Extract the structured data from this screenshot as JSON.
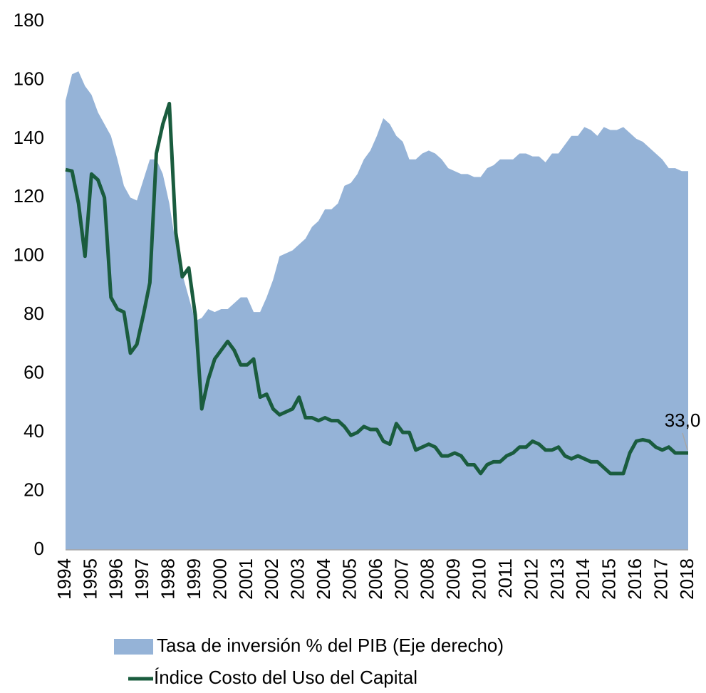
{
  "chart_data": {
    "type": "line",
    "categories": [
      "1994",
      null,
      null,
      null,
      "1995",
      null,
      null,
      null,
      "1996",
      null,
      null,
      null,
      "1997",
      null,
      null,
      null,
      "1998",
      null,
      null,
      null,
      "1999",
      null,
      null,
      null,
      "2000",
      null,
      null,
      null,
      "2001",
      null,
      null,
      null,
      "2002",
      null,
      null,
      null,
      "2003",
      null,
      null,
      null,
      "2004",
      null,
      null,
      null,
      "2005",
      null,
      null,
      null,
      "2006",
      null,
      null,
      null,
      "2007",
      null,
      null,
      null,
      "2008",
      null,
      null,
      null,
      "2009",
      null,
      null,
      null,
      "2010",
      null,
      null,
      null,
      "2011",
      null,
      null,
      null,
      "2012",
      null,
      null,
      null,
      "2013",
      null,
      null,
      null,
      "2014",
      null,
      null,
      null,
      "2015",
      null,
      null,
      null,
      "2016",
      null,
      null,
      null,
      "2017",
      null,
      null,
      null,
      "2018"
    ],
    "series": [
      {
        "name": "Tasa de inversión % del PIB (Eje derecho)",
        "type": "area",
        "color": "#95b3d7",
        "values": [
          153,
          162,
          163,
          158,
          155,
          149,
          145,
          141,
          133,
          124,
          120,
          119,
          126,
          133,
          133,
          128,
          118,
          104,
          94,
          86,
          78,
          79,
          82,
          81,
          82,
          82,
          84,
          86,
          86,
          81,
          81,
          86,
          92,
          100,
          101,
          102,
          104,
          106,
          110,
          112,
          116,
          116,
          118,
          124,
          125,
          128,
          133,
          136,
          141,
          147,
          145,
          141,
          139,
          133,
          133,
          135,
          136,
          135,
          133,
          130,
          129,
          128,
          128,
          127,
          127,
          130,
          131,
          133,
          133,
          133,
          135,
          135,
          134,
          134,
          132,
          135,
          135,
          138,
          141,
          141,
          144,
          143,
          141,
          144,
          143,
          143,
          144,
          142,
          140,
          139,
          137,
          135,
          133,
          130,
          130,
          129,
          129
        ]
      },
      {
        "name": "Índice Costo del Uso del Capital",
        "type": "line",
        "color": "#1a5c3e",
        "values": [
          129.5,
          129,
          118,
          100,
          128,
          126,
          120,
          86,
          82,
          81,
          67,
          70,
          80,
          91,
          135,
          145,
          152,
          108,
          93,
          96,
          80,
          48,
          58,
          65,
          68,
          71,
          68,
          63,
          63,
          65,
          52,
          53,
          48,
          46,
          47,
          48,
          52,
          45,
          45,
          44,
          45,
          44,
          44,
          42,
          39,
          40,
          42,
          41,
          41,
          37,
          36,
          43,
          40,
          40,
          34,
          35,
          36,
          35,
          32,
          32,
          33,
          32,
          29,
          29,
          26,
          29,
          30,
          30,
          32,
          33,
          35,
          35,
          37,
          36,
          34,
          34,
          35,
          32,
          31,
          32,
          31,
          30,
          30,
          28,
          26,
          26,
          26,
          33,
          37,
          37.5,
          37,
          35,
          34,
          35,
          33,
          33,
          33
        ],
        "value_labels": [
          null,
          null,
          null,
          null,
          null,
          null,
          null,
          null,
          null,
          null,
          null,
          null,
          null,
          null,
          null,
          null,
          null,
          null,
          null,
          null,
          null,
          null,
          null,
          null,
          null,
          null,
          null,
          null,
          null,
          null,
          null,
          null,
          null,
          null,
          null,
          null,
          null,
          null,
          null,
          null,
          null,
          null,
          null,
          null,
          null,
          null,
          null,
          null,
          null,
          null,
          null,
          null,
          null,
          null,
          null,
          null,
          null,
          null,
          null,
          null,
          null,
          null,
          null,
          null,
          null,
          null,
          null,
          null,
          null,
          null,
          null,
          null,
          null,
          null,
          null,
          null,
          null,
          null,
          null,
          null,
          null,
          null,
          null,
          null,
          null,
          null,
          null,
          null,
          null,
          null,
          null,
          null,
          null,
          null,
          null,
          null,
          "33,0"
        ]
      }
    ],
    "ylim": [
      0,
      180
    ],
    "yticks": [
      0,
      20,
      40,
      60,
      80,
      100,
      120,
      140,
      160,
      180
    ],
    "grid": false
  }
}
